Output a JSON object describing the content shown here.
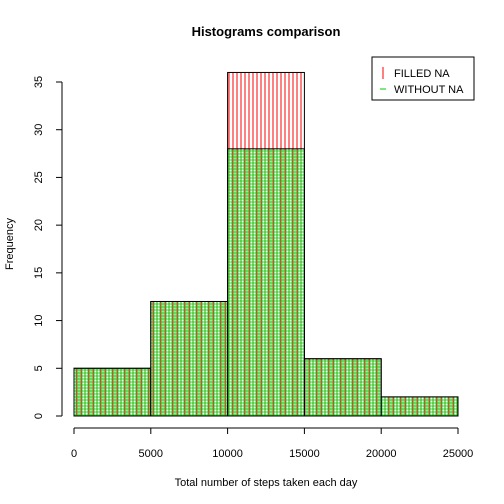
{
  "chart_data": {
    "type": "bar",
    "title": "Histograms comparison",
    "xlabel": "Total number of steps taken each day",
    "ylabel": "Frequency",
    "xlim": [
      0,
      25000
    ],
    "ylim": [
      0,
      35
    ],
    "x_ticks": [
      "0",
      "5000",
      "10000",
      "15000",
      "20000",
      "25000"
    ],
    "y_ticks": [
      "0",
      "5",
      "10",
      "15",
      "20",
      "25",
      "30",
      "35"
    ],
    "bin_edges": [
      0,
      5000,
      10000,
      15000,
      20000,
      25000
    ],
    "series": [
      {
        "name": "FILLED NA",
        "values": [
          5,
          12,
          36,
          6,
          2
        ],
        "color": "#ff0000",
        "pattern": "vertical-lines"
      },
      {
        "name": "WITHOUT NA",
        "values": [
          5,
          12,
          28,
          6,
          2
        ],
        "color": "#00cc00",
        "pattern": "grid-lines"
      }
    ],
    "legend": {
      "position": "top-right"
    },
    "grid": false
  }
}
